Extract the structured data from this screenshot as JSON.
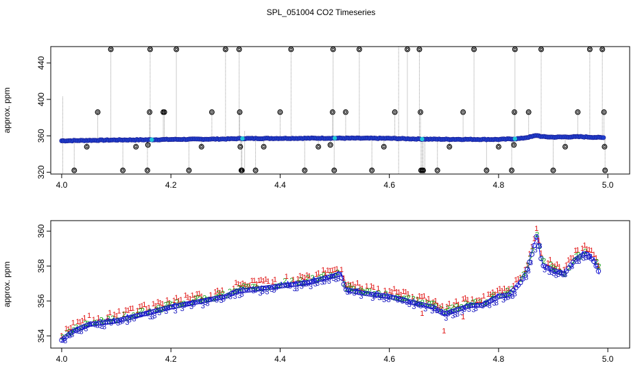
{
  "figure": {
    "title": "SPL_051004  CO2 Timeseries"
  },
  "colors": {
    "outlier": "#000000",
    "trace_fill": "#1f3fd0",
    "trace_edge": "#1a1a8a",
    "trace_cyan": "#20c8d8",
    "spike_line": "#9a9a9a",
    "series_1": "#e01010",
    "series_2": "#10a010",
    "series_3": "#1818c0",
    "line_blue": "#0000ff"
  },
  "chart_data": [
    {
      "type": "scatter",
      "ylabel": "approx. ppm",
      "xlim": [
        3.98,
        5.04
      ],
      "ylim": [
        318,
        458
      ],
      "xticks": [
        "4.0",
        "4.2",
        "4.4",
        "4.6",
        "4.8",
        "5.0"
      ],
      "xtick_values": [
        4.0,
        4.2,
        4.4,
        4.6,
        4.8,
        5.0
      ],
      "yticks": [
        "320",
        "360",
        "400",
        "440"
      ],
      "ytick_values": [
        320,
        360,
        400,
        440
      ],
      "baseline": {
        "x": [
          4.0,
          4.05,
          4.1,
          4.15,
          4.2,
          4.3,
          4.33,
          4.4,
          4.5,
          4.6,
          4.66,
          4.7,
          4.8,
          4.84,
          4.86,
          4.87,
          4.88,
          4.9,
          4.95,
          4.99
        ],
        "y": [
          354.5,
          355.0,
          355.4,
          355.6,
          356.0,
          356.5,
          357.0,
          357.2,
          357.4,
          357.2,
          356.4,
          356.2,
          356.0,
          357.0,
          359.0,
          360.5,
          359.0,
          358.5,
          359.0,
          358.0
        ]
      },
      "outliers": {
        "x": [
          4.023,
          4.046,
          4.066,
          4.09,
          4.112,
          4.136,
          4.157,
          4.158,
          4.161,
          4.162,
          4.186,
          4.188,
          4.21,
          4.233,
          4.256,
          4.275,
          4.3,
          4.325,
          4.326,
          4.327,
          4.329,
          4.33,
          4.355,
          4.37,
          4.4,
          4.42,
          4.445,
          4.47,
          4.492,
          4.496,
          4.497,
          4.499,
          4.52,
          4.545,
          4.568,
          4.59,
          4.61,
          4.633,
          4.655,
          4.657,
          4.658,
          4.66,
          4.662,
          4.688,
          4.71,
          4.735,
          4.755,
          4.778,
          4.8,
          4.824,
          4.828,
          4.829,
          4.83,
          4.855,
          4.878,
          4.9,
          4.922,
          4.945,
          4.967,
          4.99,
          4.993,
          4.994,
          4.995
        ],
        "y": [
          322,
          348,
          386,
          455,
          322,
          348,
          322,
          350,
          386,
          455,
          386,
          386,
          455,
          322,
          348,
          386,
          455,
          455,
          386,
          348,
          322,
          322,
          322,
          348,
          386,
          455,
          322,
          348,
          350,
          386,
          455,
          322,
          386,
          455,
          322,
          348,
          386,
          455,
          455,
          386,
          322,
          322,
          322,
          322,
          348,
          386,
          455,
          322,
          348,
          322,
          350,
          386,
          455,
          386,
          455,
          322,
          348,
          386,
          455,
          455,
          386,
          348,
          322
        ]
      }
    },
    {
      "type": "scatter",
      "ylabel": "approx. ppm",
      "xlim": [
        3.98,
        5.04
      ],
      "ylim": [
        353.3,
        360.6
      ],
      "xticks": [
        "4.0",
        "4.2",
        "4.4",
        "4.6",
        "4.8",
        "5.0"
      ],
      "xtick_values": [
        4.0,
        4.2,
        4.4,
        4.6,
        4.8,
        5.0
      ],
      "yticks": [
        "354",
        "356",
        "358",
        "360"
      ],
      "ytick_values": [
        354,
        356,
        358,
        360
      ],
      "symbols": [
        "1",
        "2",
        "3"
      ],
      "trend": {
        "x": [
          4.0,
          4.02,
          4.05,
          4.1,
          4.15,
          4.2,
          4.25,
          4.3,
          4.32,
          4.35,
          4.4,
          4.45,
          4.5,
          4.51,
          4.52,
          4.55,
          4.6,
          4.65,
          4.68,
          4.7,
          4.72,
          4.75,
          4.77,
          4.8,
          4.82,
          4.84,
          4.85,
          4.86,
          4.87,
          4.88,
          4.9,
          4.92,
          4.94,
          4.96,
          4.975,
          4.985
        ],
        "y": [
          353.8,
          354.3,
          354.7,
          354.9,
          355.3,
          355.7,
          356.0,
          356.3,
          356.6,
          356.7,
          356.9,
          357.1,
          357.5,
          357.6,
          356.7,
          356.5,
          356.3,
          355.9,
          355.7,
          355.3,
          355.5,
          355.8,
          355.8,
          356.3,
          356.4,
          357.1,
          357.6,
          358.6,
          359.8,
          358.1,
          357.8,
          357.6,
          358.4,
          358.8,
          358.3,
          357.6
        ]
      }
    }
  ]
}
